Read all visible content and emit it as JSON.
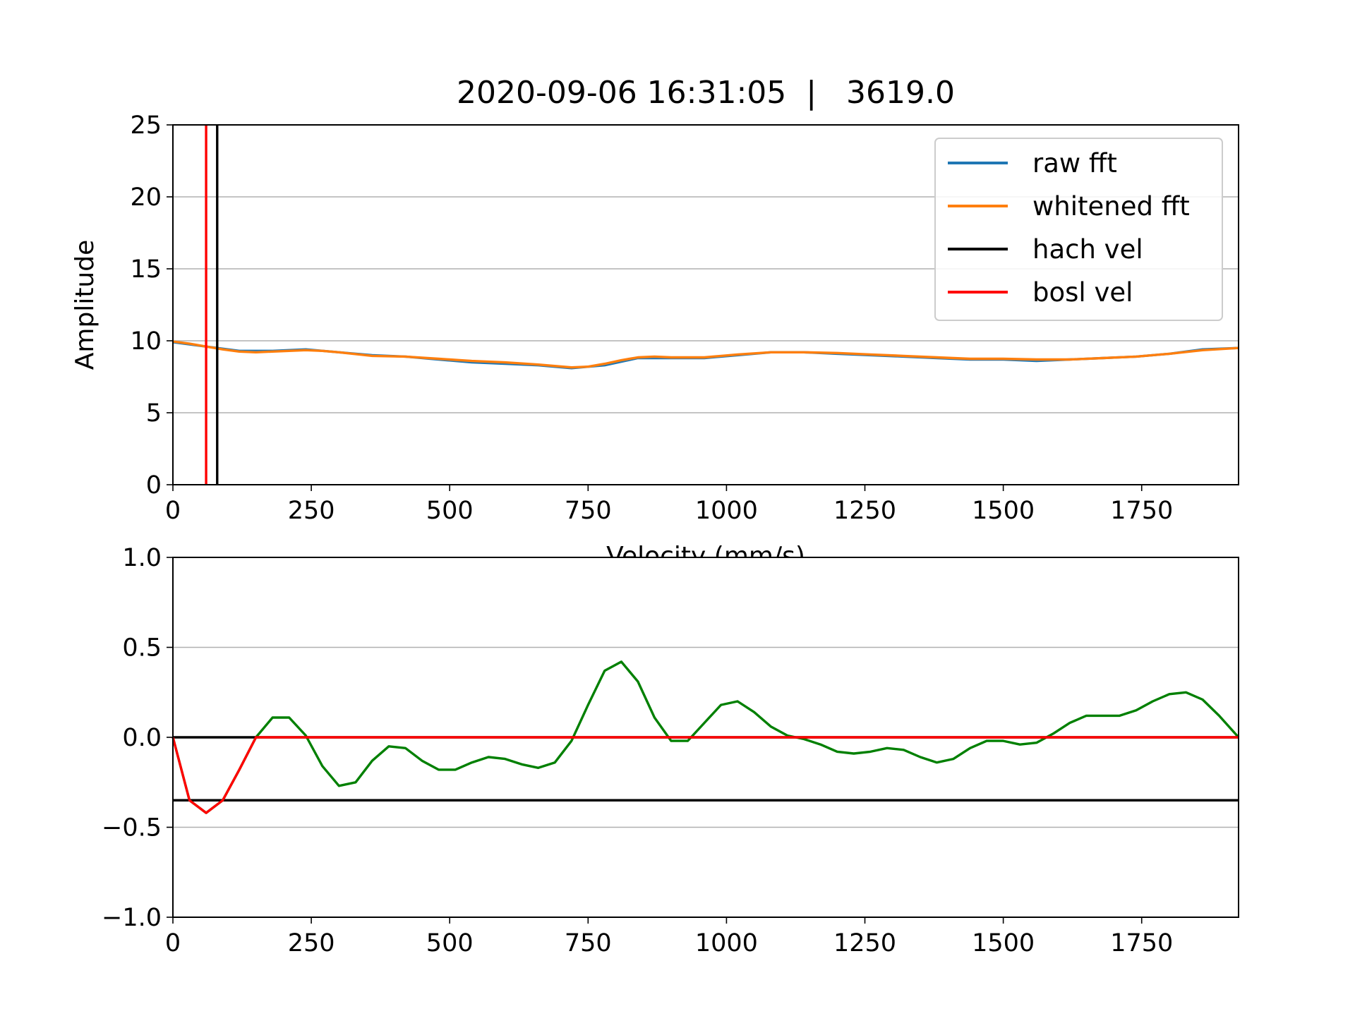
{
  "title": "2020-09-06 16:31:05  |   3619.0",
  "chart_data": [
    {
      "type": "line",
      "title": "2020-09-06 16:31:05  |   3619.0",
      "xlabel": "Velocity (mm/s)",
      "ylabel": "Amplitude",
      "xlim": [
        0,
        1925
      ],
      "ylim": [
        0,
        25
      ],
      "xticks": [
        "0",
        "250",
        "500",
        "750",
        "1000",
        "1250",
        "1500",
        "1750"
      ],
      "yticks": [
        "0",
        "5",
        "10",
        "15",
        "20",
        "25"
      ],
      "grid": "horizontal",
      "legend_position": "upper-right",
      "legend": [
        "raw fft",
        "whitened fft",
        "hach vel",
        "bosl vel"
      ],
      "series": [
        {
          "name": "raw fft",
          "color": "#1f77b4",
          "x": [
            0,
            60,
            120,
            180,
            240,
            300,
            360,
            420,
            480,
            540,
            600,
            660,
            720,
            780,
            840,
            900,
            960,
            1020,
            1080,
            1140,
            1200,
            1260,
            1320,
            1380,
            1440,
            1500,
            1560,
            1620,
            1680,
            1740,
            1800,
            1860,
            1925
          ],
          "y": [
            9.9,
            9.6,
            9.3,
            9.3,
            9.4,
            9.2,
            9.0,
            8.9,
            8.7,
            8.5,
            8.4,
            8.3,
            8.1,
            8.3,
            8.8,
            8.8,
            8.8,
            9.0,
            9.2,
            9.2,
            9.1,
            9.0,
            8.9,
            8.8,
            8.7,
            8.7,
            8.6,
            8.7,
            8.8,
            8.9,
            9.1,
            9.4,
            9.5
          ]
        },
        {
          "name": "whitened fft",
          "color": "#ff7f0e",
          "x": [
            0,
            30,
            60,
            90,
            120,
            150,
            180,
            210,
            240,
            270,
            300,
            360,
            420,
            480,
            540,
            600,
            660,
            690,
            720,
            750,
            780,
            810,
            840,
            870,
            900,
            960,
            1020,
            1080,
            1140,
            1200,
            1260,
            1320,
            1380,
            1440,
            1500,
            1560,
            1620,
            1680,
            1740,
            1800,
            1860,
            1925
          ],
          "y": [
            9.95,
            9.8,
            9.6,
            9.4,
            9.25,
            9.2,
            9.25,
            9.3,
            9.35,
            9.3,
            9.2,
            8.95,
            8.9,
            8.75,
            8.6,
            8.5,
            8.35,
            8.25,
            8.15,
            8.2,
            8.4,
            8.65,
            8.85,
            8.9,
            8.85,
            8.85,
            9.05,
            9.2,
            9.2,
            9.15,
            9.05,
            8.95,
            8.85,
            8.75,
            8.75,
            8.7,
            8.7,
            8.8,
            8.9,
            9.1,
            9.35,
            9.5
          ]
        }
      ],
      "vlines": [
        {
          "name": "hach vel",
          "color": "#000000",
          "x": 80
        },
        {
          "name": "bosl vel",
          "color": "#ff0000",
          "x": 60
        }
      ]
    },
    {
      "type": "line",
      "xlim": [
        0,
        1925
      ],
      "ylim": [
        -1.0,
        1.0
      ],
      "xticks": [
        "0",
        "250",
        "500",
        "750",
        "1000",
        "1250",
        "1500",
        "1750"
      ],
      "yticks": [
        "−1.0",
        "−0.5",
        "0.0",
        "0.5",
        "1.0"
      ],
      "grid": "horizontal",
      "series": [
        {
          "color": "#008000",
          "x": [
            0,
            30,
            60,
            90,
            120,
            150,
            180,
            210,
            240,
            270,
            300,
            330,
            360,
            390,
            420,
            450,
            480,
            510,
            540,
            570,
            600,
            630,
            660,
            690,
            720,
            750,
            780,
            810,
            840,
            870,
            900,
            930,
            960,
            990,
            1020,
            1050,
            1080,
            1110,
            1140,
            1170,
            1200,
            1230,
            1260,
            1290,
            1320,
            1350,
            1380,
            1410,
            1440,
            1470,
            1500,
            1530,
            1560,
            1590,
            1620,
            1650,
            1680,
            1710,
            1740,
            1770,
            1800,
            1830,
            1860,
            1890,
            1925
          ],
          "y": [
            0.0,
            -0.35,
            -0.42,
            -0.35,
            -0.18,
            0.0,
            0.11,
            0.11,
            0.01,
            -0.16,
            -0.27,
            -0.25,
            -0.13,
            -0.05,
            -0.06,
            -0.13,
            -0.18,
            -0.18,
            -0.14,
            -0.11,
            -0.12,
            -0.15,
            -0.17,
            -0.14,
            -0.02,
            0.18,
            0.37,
            0.42,
            0.31,
            0.11,
            -0.02,
            -0.02,
            0.08,
            0.18,
            0.2,
            0.14,
            0.06,
            0.01,
            -0.01,
            -0.04,
            -0.08,
            -0.09,
            -0.08,
            -0.06,
            -0.07,
            -0.11,
            -0.14,
            -0.12,
            -0.06,
            -0.02,
            -0.02,
            -0.04,
            -0.03,
            0.02,
            0.08,
            0.12,
            0.12,
            0.12,
            0.15,
            0.2,
            0.24,
            0.25,
            0.21,
            0.12,
            0.0
          ]
        },
        {
          "color": "#ff0000",
          "x": [
            0,
            30,
            60,
            90,
            120,
            150,
            1925
          ],
          "y": [
            0.0,
            -0.35,
            -0.42,
            -0.35,
            -0.18,
            0.0,
            0.0
          ]
        }
      ],
      "hlines": [
        {
          "color": "#000000",
          "y": 0.0
        },
        {
          "color": "#000000",
          "y": -0.35
        }
      ]
    }
  ]
}
